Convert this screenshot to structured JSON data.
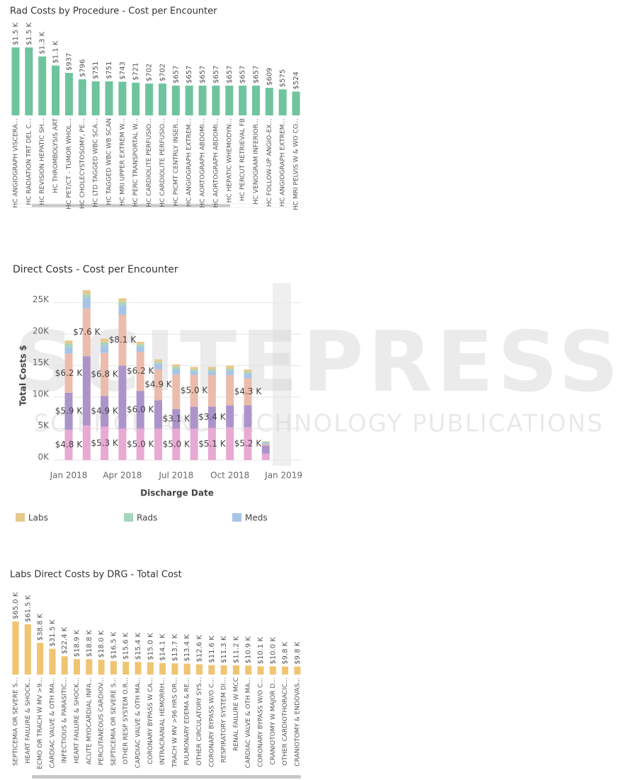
{
  "watermark": {
    "title": "SCITEPRESS",
    "subtitle": "SCIENCE AND TECHNOLOGY PUBLICATIONS"
  },
  "chart_data": [
    {
      "type": "bar",
      "title": "Rad Costs by Procedure - Cost per Encounter",
      "color": "#6fc49e",
      "categories": [
        "HC ANGIOGRAPH VISCERA...",
        "HC RADIATION TRT DEL C...",
        "HC REVISION HEPATIC SH...",
        "HC THROMBOLYSIS ART",
        "HC PET/CT - TUMOR WHOL...",
        "HC CHOLECYSTOSOMY, PE...",
        "HC LTD TAGGED WBC SCA...",
        "HC TAGGED WBC WB SCAN",
        "HC MRI UPPER EXTREM W...",
        "HC PERC TRANSPORTAL W...",
        "HC CARDIOLITE PERFUSIO...",
        "HC CARDIOLITE PERFUSIO...",
        "HC PICMT CENTRLY INSER...",
        "HC ANGIOGRAPH EXTREM...",
        "HC AORTOGRAPH ABDOMI...",
        "HC AORTOGRAPH ABDOMI...",
        "HC HEPATIC WHEMODYN...",
        "HC PERCUT RETRIEVAL FB",
        "HC VENOGRAM INFERIOR...",
        "HC FOLLOW-UP ANGIO-EX...",
        "HC ANGIOGRAPH EXTREM...",
        "HC MRI PELVIS W & WO CO..."
      ],
      "values": [
        1500,
        1500,
        1300,
        1100,
        937,
        796,
        751,
        751,
        743,
        721,
        702,
        702,
        657,
        657,
        657,
        657,
        657,
        657,
        657,
        609,
        575,
        524
      ],
      "value_labels": [
        "$1.5 K",
        "$1.5 K",
        "$1.3 K",
        "$1.1 K",
        "$937",
        "$796",
        "$751",
        "$751",
        "$743",
        "$721",
        "$702",
        "$702",
        "$657",
        "$657",
        "$657",
        "$657",
        "$657",
        "$657",
        "$657",
        "$609",
        "$575",
        "$524"
      ]
    },
    {
      "type": "stacked_bar",
      "title": "Direct Costs - Cost per Encounter",
      "x_label": "Discharge Date",
      "y_label": "Total Costs $",
      "categories": [
        "Jan 2018",
        null,
        null,
        "Apr 2018",
        null,
        null,
        "Jul 2018",
        null,
        null,
        "Oct 2018",
        null,
        null,
        "Jan 2019"
      ],
      "ylim": [
        0,
        28000
      ],
      "yticks": [
        {
          "value": 0,
          "label": "0K"
        },
        {
          "value": 5000,
          "label": "5K"
        },
        {
          "value": 10000,
          "label": "10K"
        },
        {
          "value": 15000,
          "label": "15K"
        },
        {
          "value": 20000,
          "label": "20K"
        },
        {
          "value": 25000,
          "label": "25K"
        }
      ],
      "grid": true,
      "series": [
        {
          "name": "Labs",
          "color": "#e6c98c",
          "values": [
            500,
            700,
            600,
            600,
            400,
            400,
            400,
            400,
            400,
            500,
            400,
            100,
            null
          ]
        },
        {
          "name": "Rads",
          "color": "#a6d5bb",
          "values": [
            600,
            500,
            500,
            500,
            400,
            400,
            400,
            300,
            300,
            300,
            300,
            100,
            null
          ]
        },
        {
          "name": "Meds",
          "color": "#a7c4e8",
          "values": [
            1000,
            1700,
            1200,
            1500,
            800,
            800,
            800,
            600,
            600,
            700,
            700,
            300,
            null
          ]
        },
        {
          "color": "#ebbcac",
          "values": [
            6200,
            7600,
            6800,
            8100,
            6200,
            4900,
            5500,
            5000,
            5000,
            4800,
            4300,
            200,
            null
          ],
          "value_labels": [
            "$6.2 K",
            "$7.6 K",
            "$6.8 K",
            "$8.1 K",
            "$6.2 K",
            "$4.9 K",
            null,
            "$5.0 K",
            null,
            null,
            "$4.3 K",
            null,
            null
          ]
        },
        {
          "color": "#ac94cb",
          "values": [
            5900,
            11000,
            4900,
            10000,
            6000,
            4500,
            3100,
            3500,
            3400,
            3500,
            3500,
            1300,
            null
          ],
          "value_labels": [
            "$5.9 K",
            null,
            "$4.9 K",
            null,
            "$6.0 K",
            null,
            "$3.1 K",
            null,
            "$3.4 K",
            null,
            null,
            null,
            null
          ]
        },
        {
          "color": "#e8a9d3",
          "values": [
            4800,
            5500,
            5300,
            5000,
            5000,
            5000,
            5000,
            5000,
            5100,
            5200,
            5200,
            1000,
            null
          ],
          "value_labels": [
            "$4.8 K",
            null,
            "$5.3 K",
            null,
            "$5.0 K",
            null,
            "$5.0 K",
            null,
            "$5.1 K",
            null,
            "$5.2 K",
            null,
            null
          ]
        }
      ]
    },
    {
      "type": "bar",
      "title": "Labs Direct Costs by DRG - Total Cost",
      "color": "#f0c470",
      "categories": [
        "SEPTICEMIA OR SEVERE S...",
        "HEART FAILURE & SHOCK...",
        "ECMO OR TRACH W MV >9...",
        "CARDIAC VALVE & OTH MA...",
        "INFECTIOUS & PARASITIC...",
        "HEART FAILURE & SHOCK...",
        "ACUTE MYOCARDIAL INFA...",
        "PERCUTANEOUS CARDIOV...",
        "SEPTICEMIA OR SEVERE S...",
        "OTHER RESP SYSTEM O.R...",
        "CARDIAC VALVE & OTH MA...",
        "CORONARY BYPASS W CA...",
        "INTRACRANIAL HEMORRH...",
        "TRACH W MV >96 HRS OR...",
        "PULMONARY EDEMA & RE...",
        "OTHER CIRCULATORY SYS...",
        "CORONARY BYPASS W/O C...",
        "RESPIRATORY SYSTEM DI...",
        "RENAL FAILURE W MCC",
        "CARDIAC VALVE & OTH MA...",
        "CORONARY BYPASS W/O C...",
        "CRANIOTOMY W MAJOR D...",
        "OTHER CARDIOTHORACIC...",
        "CRANIOTOMY & ENDOVAS..."
      ],
      "values": [
        65000,
        61500,
        38800,
        31500,
        22400,
        18900,
        18800,
        18000,
        16500,
        15600,
        15400,
        15000,
        14100,
        13700,
        13400,
        12600,
        11600,
        11300,
        11200,
        10900,
        10100,
        10000,
        9800,
        9800
      ],
      "value_labels": [
        "$65.0 K",
        "$61.5 K",
        "$38.8 K",
        "$31.5 K",
        "$22.4 K",
        "$18.9 K",
        "$18.8 K",
        "$18.0 K",
        "$16.5 K",
        "$15.6 K",
        "$15.4 K",
        "$15.0 K",
        "$14.1 K",
        "$13.7 K",
        "$13.4 K",
        "$12.6 K",
        "$11.6 K",
        "$11.3 K",
        "$11.2 K",
        "$10.9 K",
        "$10.1 K",
        "$10.0 K",
        "$9.8 K",
        "$9.8 K"
      ]
    }
  ]
}
